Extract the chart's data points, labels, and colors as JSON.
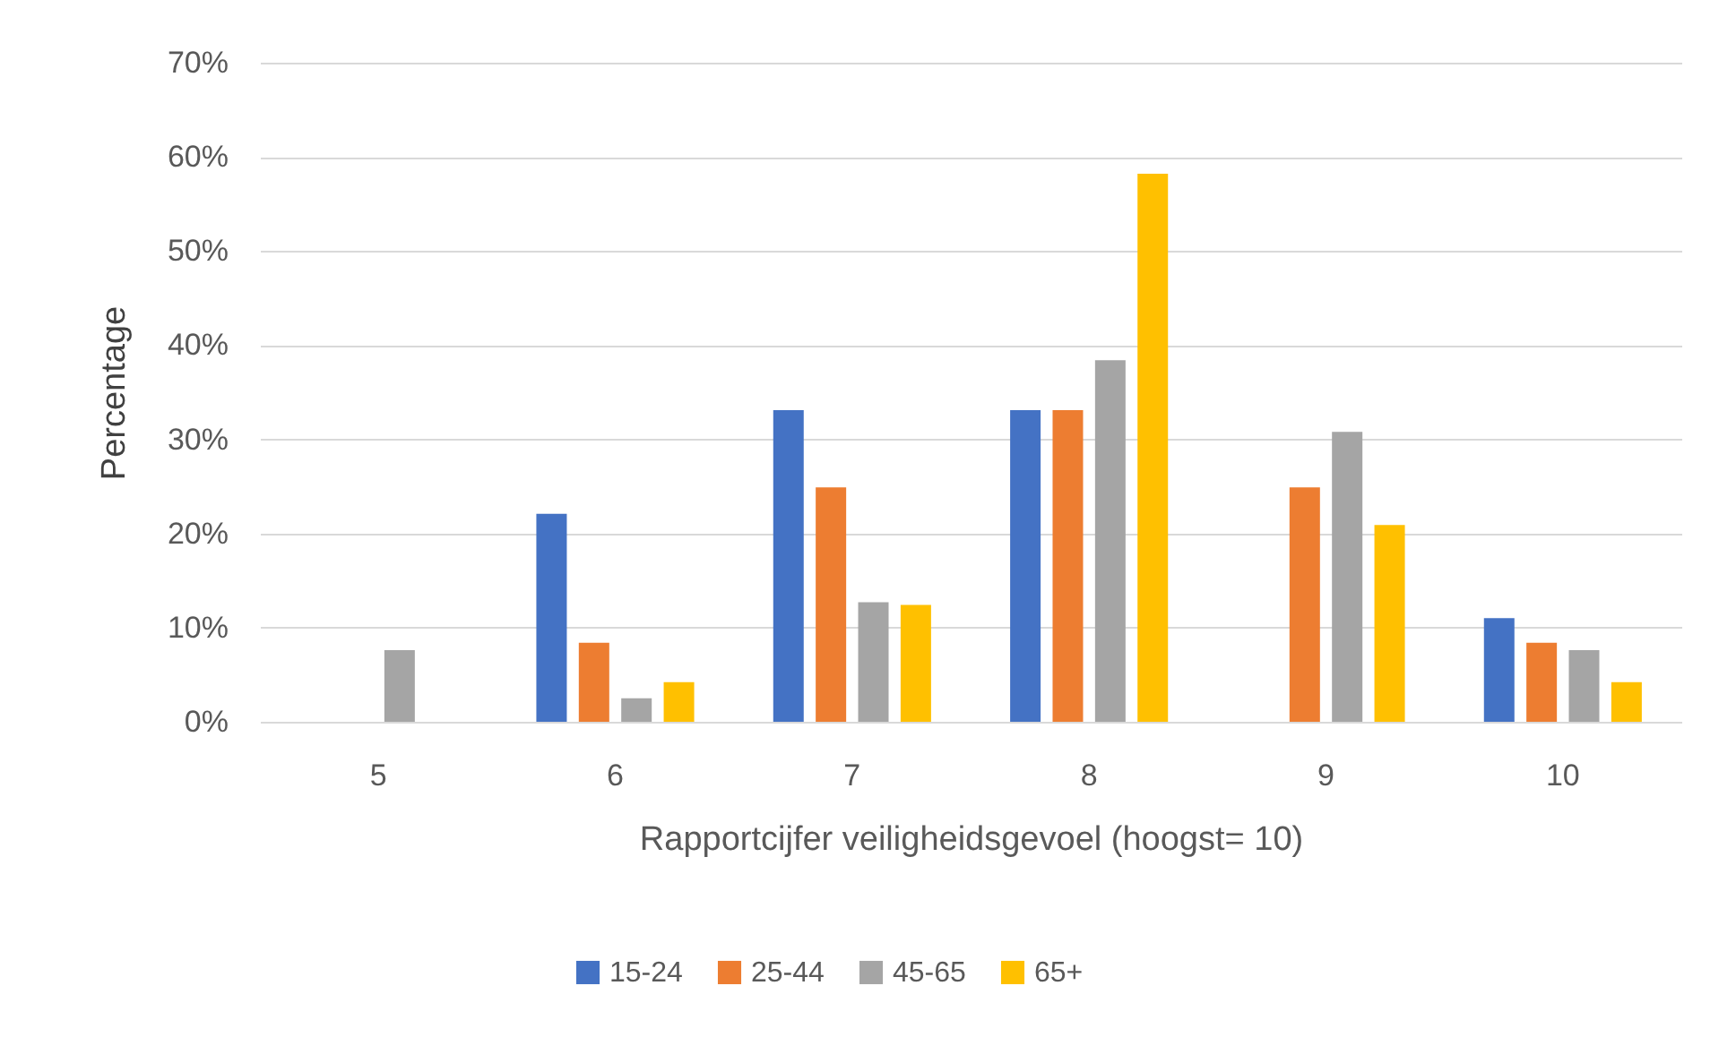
{
  "chart_data": {
    "type": "bar",
    "xlabel": "Rapportcijfer veiligheidsgevoel (hoogst= 10)",
    "ylabel": "Percentage",
    "categories": [
      "5",
      "6",
      "7",
      "8",
      "9",
      "10"
    ],
    "series": [
      {
        "name": "15-24",
        "color": "#4472c4",
        "values": [
          0,
          22.1,
          33.1,
          33.1,
          0,
          11.0
        ]
      },
      {
        "name": "25-44",
        "color": "#ed7d31",
        "values": [
          0,
          8.4,
          24.9,
          33.1,
          24.9,
          8.4
        ]
      },
      {
        "name": "45-65",
        "color": "#a5a5a5",
        "values": [
          7.6,
          2.5,
          12.7,
          38.4,
          30.8,
          7.6
        ]
      },
      {
        "name": "65+",
        "color": "#ffc000",
        "values": [
          0,
          4.2,
          12.4,
          58.2,
          20.9,
          4.2
        ]
      }
    ],
    "ylim": [
      0,
      70
    ],
    "yticks": [
      {
        "value": 0,
        "label": "0%"
      },
      {
        "value": 10,
        "label": "10%"
      },
      {
        "value": 20,
        "label": "20%"
      },
      {
        "value": 30,
        "label": "30%"
      },
      {
        "value": 40,
        "label": "40%"
      },
      {
        "value": 50,
        "label": "50%"
      },
      {
        "value": 60,
        "label": "60%"
      },
      {
        "value": 70,
        "label": "70%"
      }
    ],
    "grid": "y",
    "legend": "bottom"
  }
}
